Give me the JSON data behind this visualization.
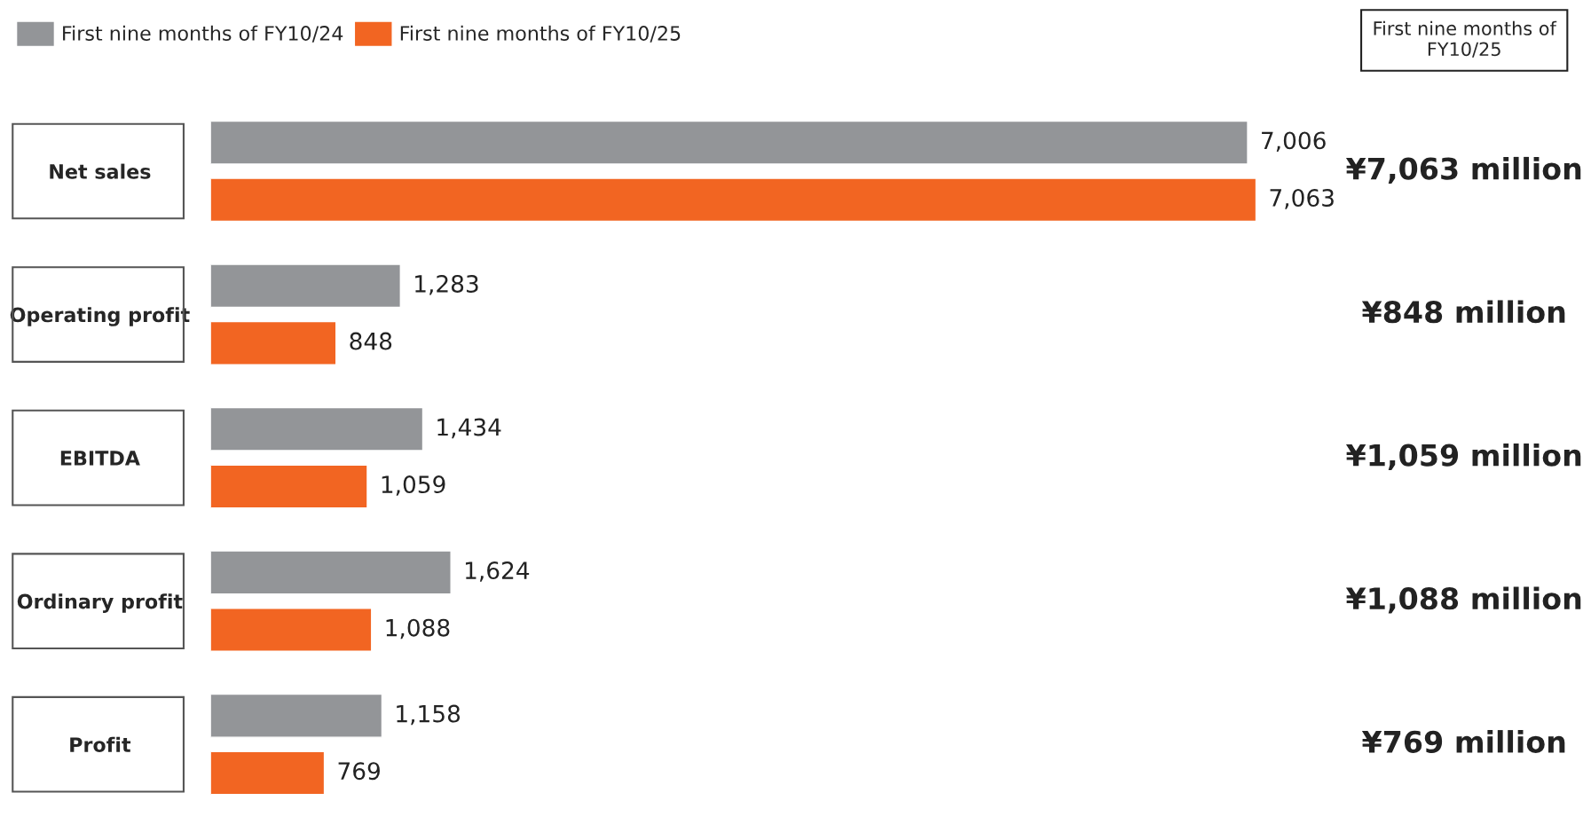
{
  "chart_data": {
    "type": "bar",
    "orientation": "horizontal",
    "categories": [
      "Net sales",
      "Operating profit",
      "EBITDA",
      "Ordinary profit",
      "Profit"
    ],
    "series": [
      {
        "name": "First nine months of FY10/24",
        "color": "#939598",
        "values": [
          7006,
          1283,
          1434,
          1624,
          1158
        ],
        "value_labels": [
          "7,006",
          "1,283",
          "1,434",
          "1,624",
          "1,158"
        ]
      },
      {
        "name": "First nine months of FY10/25",
        "color": "#f26522",
        "values": [
          7063,
          848,
          1059,
          1088,
          769
        ],
        "value_labels": [
          "7,063",
          "848",
          "1,059",
          "1,088",
          "769"
        ]
      }
    ],
    "legend": "top left",
    "grid": false,
    "tick_labels": "y",
    "annotations": [
      "First nine months of FY10/25",
      "¥7,063 million",
      "¥848 million",
      "¥1,059 million",
      "¥1,088 million",
      "¥769 million"
    ]
  }
}
